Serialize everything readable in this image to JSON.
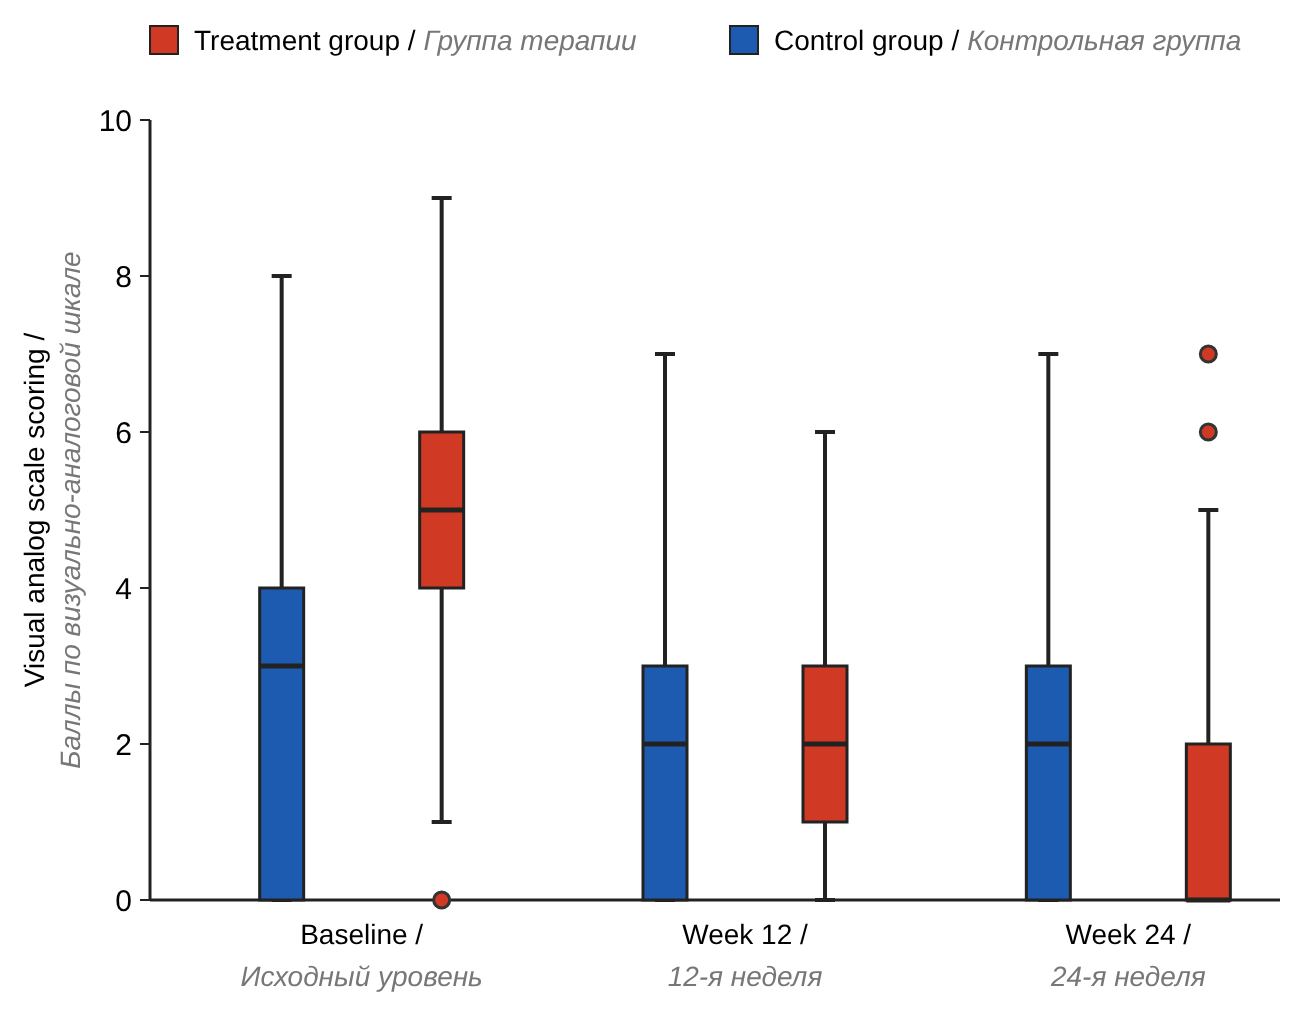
{
  "chart_data": {
    "type": "box",
    "ylabel": "Visual analog scale scoring / Баллы по визуально-аналоговой шкале",
    "categories": [
      "Baseline / Исходный уровень",
      "Week 12 / 12-я неделя",
      "Week 24 / 24-я неделя"
    ],
    "ylim": [
      0,
      10
    ],
    "yticks": [
      0,
      2,
      4,
      6,
      8,
      10
    ],
    "grid": false,
    "legend": "top",
    "series": [
      {
        "name": "Treatment group / Группа терапии",
        "color": "#d03a25",
        "boxes": [
          {
            "low": 1,
            "q1": 4,
            "median": 5,
            "q3": 6,
            "high": 9,
            "outliers": [
              0
            ]
          },
          {
            "low": 0,
            "q1": 1,
            "median": 2,
            "q3": 3,
            "high": 6
          },
          {
            "low": 0,
            "q1": 0,
            "median": 0,
            "q3": 2,
            "high": 5,
            "outliers": [
              6,
              7
            ]
          }
        ]
      },
      {
        "name": "Control group / Контрольная группа",
        "color": "#1d5bb0",
        "boxes": [
          {
            "low": 0,
            "q1": 0,
            "median": 3,
            "q3": 4,
            "high": 8
          },
          {
            "low": 0,
            "q1": 0,
            "median": 2,
            "q3": 3,
            "high": 7
          },
          {
            "low": 0,
            "q1": 0,
            "median": 2,
            "q3": 3,
            "high": 7
          }
        ]
      }
    ]
  }
}
